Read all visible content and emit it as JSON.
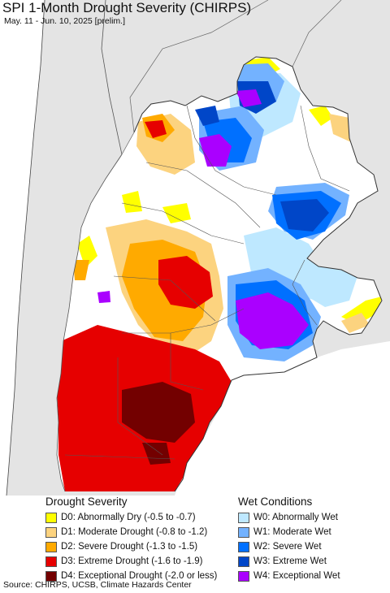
{
  "title": "SPI 1-Month Drought Severity (CHIRPS)",
  "subtitle": "May. 11 - Jun. 10, 2025 [prelim.]",
  "source": "Source: CHIRPS, UCSB, Climate Hazards Center",
  "legend": {
    "drought_heading": "Drought Severity",
    "wet_heading": "Wet Conditions",
    "drought": [
      {
        "label": "D0: Abnormally Dry (-0.5 to -0.7)",
        "color": "#ffff00"
      },
      {
        "label": "D1: Moderate Drought (-0.8 to -1.2)",
        "color": "#fcd37f"
      },
      {
        "label": "D2: Severe Drought (-1.3 to -1.5)",
        "color": "#ffaa00"
      },
      {
        "label": "D3: Extreme Drought (-1.6 to -1.9)",
        "color": "#e60000"
      },
      {
        "label": "D4: Exceptional Drought (-2.0 or less)",
        "color": "#730000"
      }
    ],
    "wet": [
      {
        "label": "W0: Abnormally Wet",
        "color": "#bee8ff"
      },
      {
        "label": "W1: Moderate Wet",
        "color": "#73b2ff"
      },
      {
        "label": "W2: Severe Wet",
        "color": "#0070ff"
      },
      {
        "label": "W3: Extreme Wet",
        "color": "#0046c8"
      },
      {
        "label": "W4: Exceptional Wet",
        "color": "#aa00ff"
      }
    ]
  },
  "colors": {
    "outside": "#e4e4e4",
    "ocean": "#ffffff",
    "normal": "#ffffff",
    "border": "#333333"
  }
}
